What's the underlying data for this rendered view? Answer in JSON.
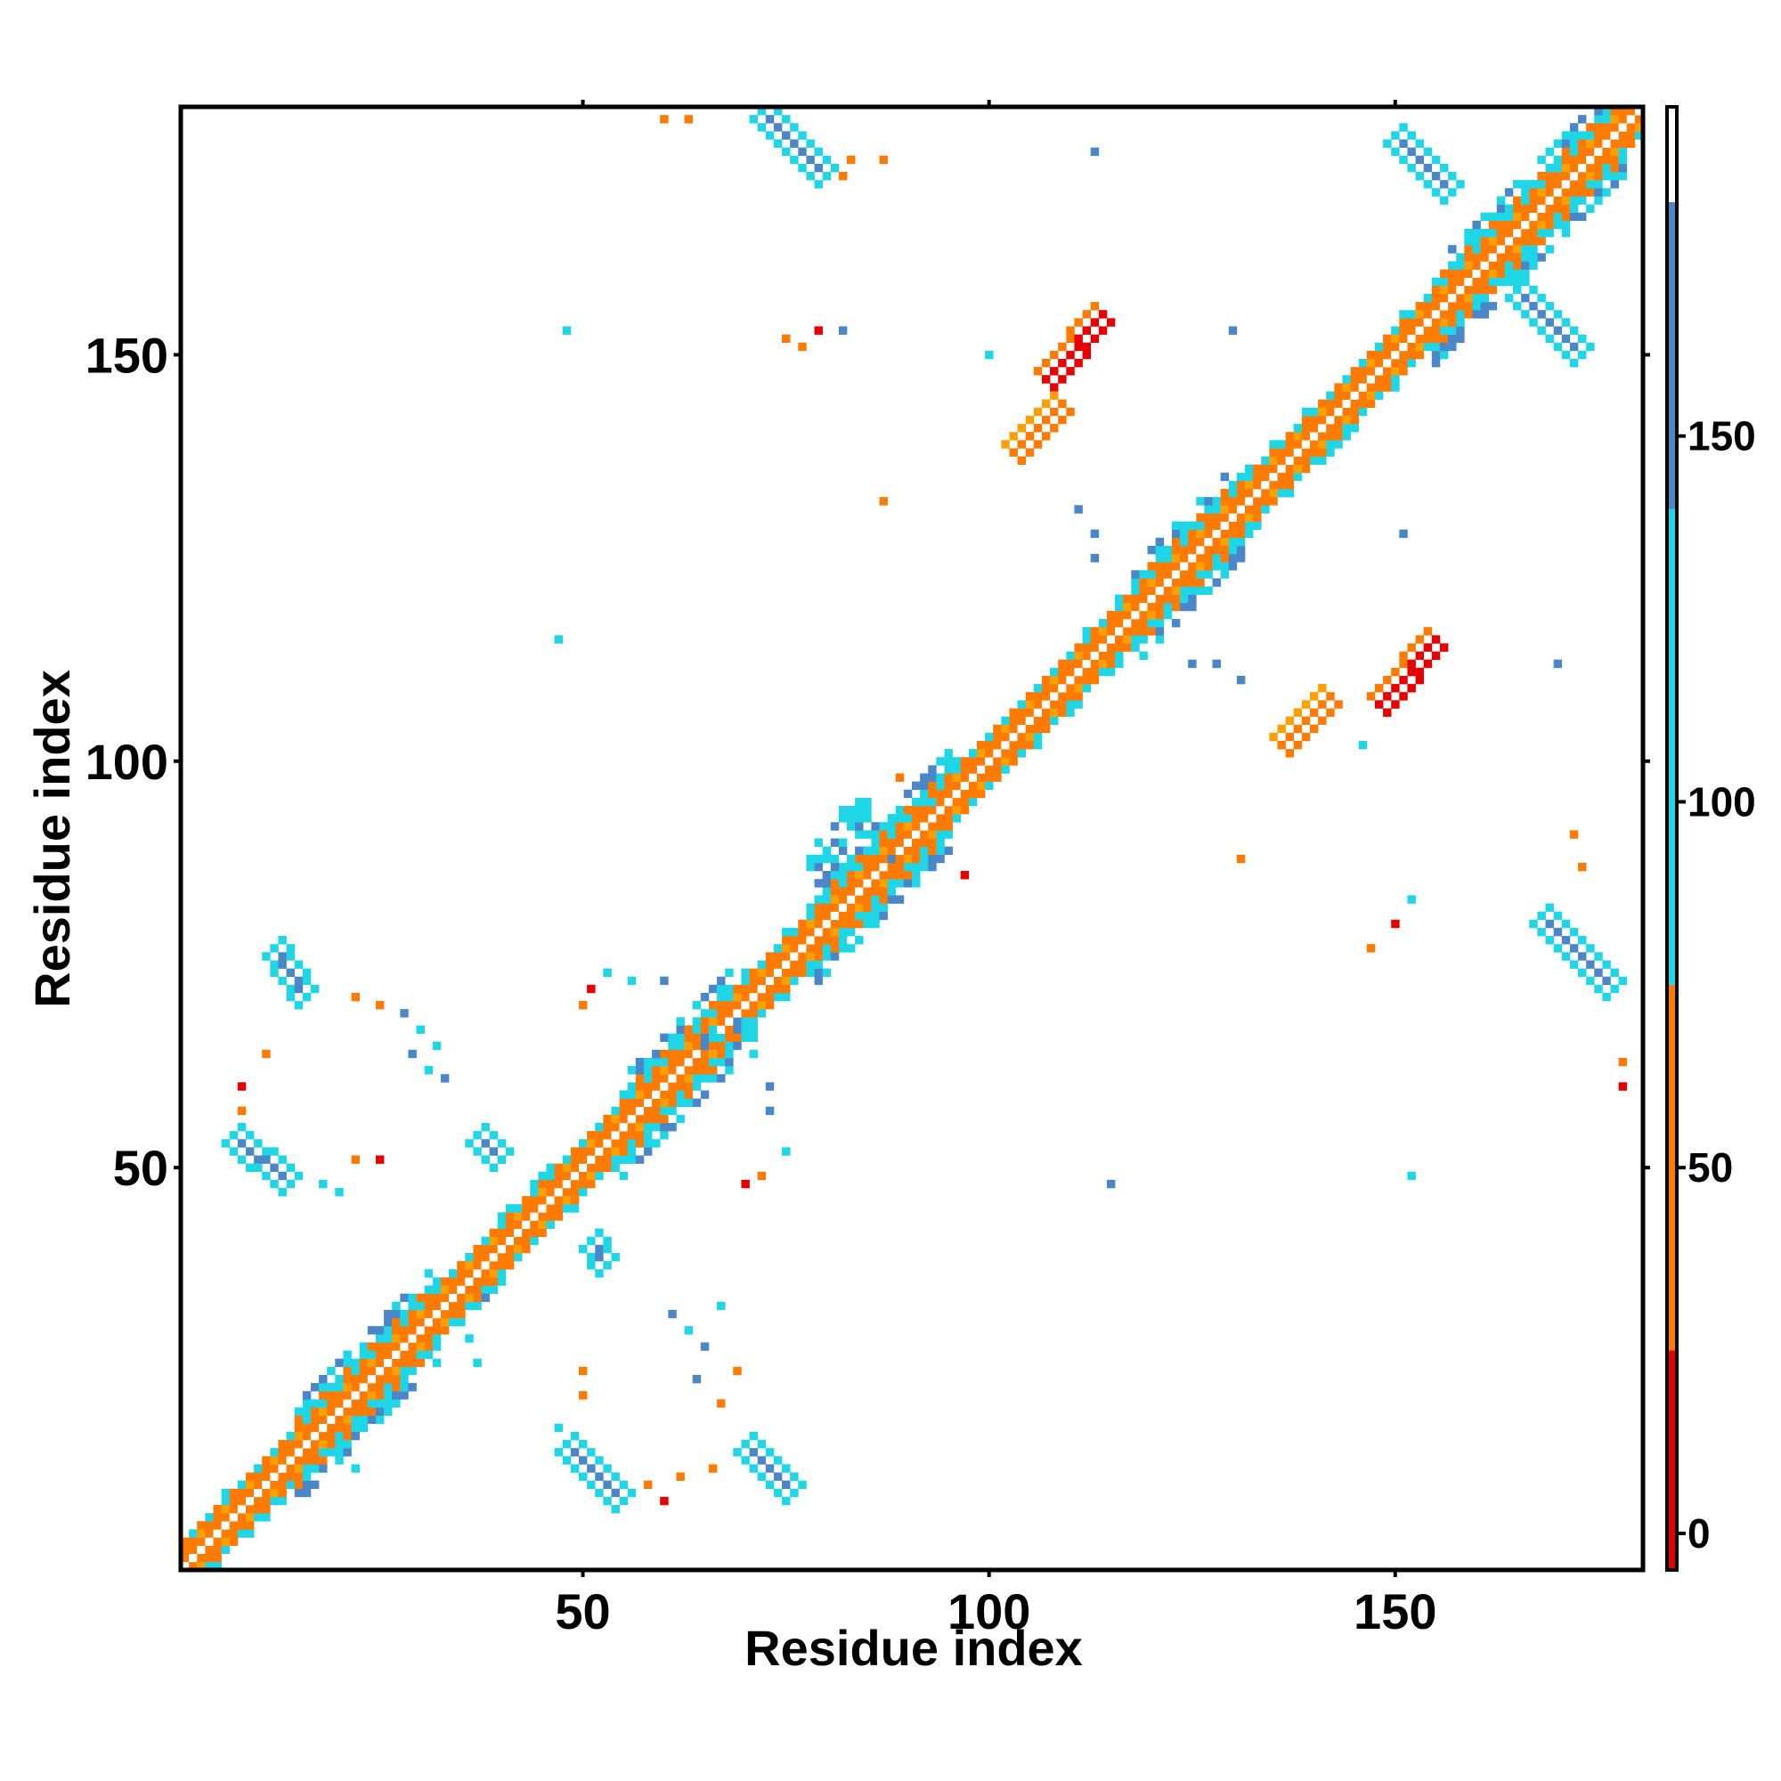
{
  "chart_data": {
    "type": "heatmap",
    "title": "",
    "xlabel": "Residue index",
    "ylabel": "Residue index",
    "xlim": [
      1,
      180
    ],
    "ylim": [
      1,
      180
    ],
    "xticks": [
      50,
      100,
      150
    ],
    "yticks": [
      50,
      100,
      150
    ],
    "legend": "colorbar-right",
    "colorbar": {
      "ticks": [
        0,
        50,
        100,
        150
      ],
      "range": [
        -5,
        195
      ],
      "bands": [
        {
          "from": -5,
          "to": 25,
          "color": "#e60000"
        },
        {
          "from": 25,
          "to": 75,
          "color": "#ff7a00"
        },
        {
          "from": 75,
          "to": 140,
          "color": "#1ed6e6"
        },
        {
          "from": 140,
          "to": 182,
          "color": "#4a86c8"
        },
        {
          "from": 182,
          "to": 195,
          "color": "#ffffff"
        }
      ]
    },
    "palette": {
      "red": "#e60000",
      "orange": "#ff7a00",
      "amber": "#ffa000",
      "cyan": "#1ed6e6",
      "blue": "#4a86c8"
    },
    "diagonal_width": 6,
    "diagonal_dense_segments": [
      [
        15,
        32
      ],
      [
        55,
        68
      ],
      [
        79,
        95
      ],
      [
        118,
        131
      ],
      [
        155,
        178
      ]
    ],
    "regions": [
      {
        "kind": "anti",
        "from": [
          72,
          180
        ],
        "to": [
          80,
          172
        ],
        "color": "blue",
        "edge": "cyan"
      },
      {
        "kind": "anti",
        "from": [
          12,
          77
        ],
        "to": [
          16,
          71
        ],
        "color": "blue",
        "edge": "cyan"
      },
      {
        "kind": "anti",
        "from": [
          7,
          54
        ],
        "to": [
          14,
          48
        ],
        "color": "blue",
        "edge": "cyan"
      },
      {
        "kind": "anti",
        "from": [
          48,
          16
        ],
        "to": [
          55,
          9
        ],
        "color": "blue",
        "edge": "cyan"
      },
      {
        "kind": "anti",
        "from": [
          70,
          16
        ],
        "to": [
          76,
          10
        ],
        "color": "blue",
        "edge": "cyan"
      },
      {
        "kind": "anti",
        "from": [
          150,
          177
        ],
        "to": [
          157,
          170
        ],
        "color": "blue",
        "edge": "cyan"
      },
      {
        "kind": "anti",
        "from": [
          165,
          158
        ],
        "to": [
          173,
          150
        ],
        "color": "blue",
        "edge": "cyan"
      },
      {
        "kind": "anti",
        "from": [
          168,
          81
        ],
        "to": [
          177,
          72
        ],
        "color": "blue",
        "edge": "cyan"
      },
      {
        "kind": "anti",
        "from": [
          37,
          54
        ],
        "to": [
          40,
          51
        ],
        "color": "blue",
        "edge": "cyan"
      },
      {
        "kind": "anti",
        "from": [
          51,
          41
        ],
        "to": [
          53,
          38
        ],
        "color": "blue",
        "edge": "cyan"
      },
      {
        "kind": "parallel",
        "from": [
          107,
          147
        ],
        "to": [
          114,
          155
        ],
        "color": "red",
        "edge": "orange"
      },
      {
        "kind": "parallel",
        "from": [
          148,
          107
        ],
        "to": [
          155,
          115
        ],
        "color": "red",
        "edge": "orange"
      },
      {
        "kind": "parallel",
        "from": [
          136,
          102
        ],
        "to": [
          142,
          108
        ],
        "color": "orange",
        "edge": "amber"
      },
      {
        "kind": "parallel",
        "from": [
          103,
          138
        ],
        "to": [
          109,
          144
        ],
        "color": "orange",
        "edge": "amber"
      },
      {
        "kind": "patch",
        "from": [
          79,
          87
        ],
        "to": [
          84,
          94
        ],
        "color": "cyan",
        "edge": "blue"
      },
      {
        "kind": "patch",
        "from": [
          66,
          65
        ],
        "to": [
          70,
          67
        ],
        "color": "cyan",
        "edge": "blue"
      }
    ],
    "scatter": [
      [
        60,
        179,
        "orange"
      ],
      [
        63,
        179,
        "orange"
      ],
      [
        82,
        172,
        "orange"
      ],
      [
        83,
        174,
        "orange"
      ],
      [
        87,
        174,
        "orange"
      ],
      [
        113,
        175,
        "blue"
      ],
      [
        100,
        150,
        "cyan"
      ],
      [
        75,
        152,
        "orange"
      ],
      [
        77,
        151,
        "orange"
      ],
      [
        79,
        153,
        "red"
      ],
      [
        82,
        153,
        "blue"
      ],
      [
        48,
        153,
        "cyan"
      ],
      [
        130,
        153,
        "blue"
      ],
      [
        87,
        132,
        "orange"
      ],
      [
        111,
        131,
        "blue"
      ],
      [
        113,
        128,
        "blue"
      ],
      [
        113,
        125,
        "blue"
      ],
      [
        151,
        128,
        "blue"
      ],
      [
        47,
        115,
        "cyan"
      ],
      [
        125,
        112,
        "blue"
      ],
      [
        128,
        112,
        "blue"
      ],
      [
        131,
        110,
        "blue"
      ],
      [
        170,
        112,
        "blue"
      ],
      [
        146,
        102,
        "cyan"
      ],
      [
        131,
        88,
        "orange"
      ],
      [
        152,
        83,
        "cyan"
      ],
      [
        150,
        80,
        "red"
      ],
      [
        147,
        77,
        "orange"
      ],
      [
        172,
        91,
        "orange"
      ],
      [
        173,
        87,
        "orange"
      ],
      [
        178,
        63,
        "orange"
      ],
      [
        178,
        60,
        "red"
      ],
      [
        115,
        48,
        "blue"
      ],
      [
        152,
        49,
        "cyan"
      ],
      [
        50,
        70,
        "orange"
      ],
      [
        51,
        72,
        "red"
      ],
      [
        53,
        74,
        "cyan"
      ],
      [
        56,
        73,
        "cyan"
      ],
      [
        60,
        73,
        "blue"
      ],
      [
        22,
        71,
        "orange"
      ],
      [
        25,
        70,
        "orange"
      ],
      [
        28,
        69,
        "blue"
      ],
      [
        30,
        67,
        "cyan"
      ],
      [
        32,
        65,
        "cyan"
      ],
      [
        29,
        64,
        "blue"
      ],
      [
        31,
        62,
        "cyan"
      ],
      [
        33,
        61,
        "blue"
      ],
      [
        11,
        64,
        "orange"
      ],
      [
        8,
        60,
        "red"
      ],
      [
        8,
        57,
        "orange"
      ],
      [
        18,
        48,
        "cyan"
      ],
      [
        20,
        47,
        "cyan"
      ],
      [
        22,
        51,
        "orange"
      ],
      [
        25,
        51,
        "red"
      ],
      [
        71,
        64,
        "cyan"
      ],
      [
        73,
        60,
        "blue"
      ],
      [
        73,
        57,
        "blue"
      ],
      [
        75,
        52,
        "cyan"
      ],
      [
        72,
        49,
        "orange"
      ],
      [
        70,
        48,
        "red"
      ],
      [
        67,
        33,
        "cyan"
      ],
      [
        63,
        30,
        "cyan"
      ],
      [
        65,
        28,
        "blue"
      ],
      [
        69,
        25,
        "orange"
      ],
      [
        61,
        32,
        "blue"
      ],
      [
        64,
        24,
        "blue"
      ],
      [
        50,
        25,
        "orange"
      ],
      [
        50,
        22,
        "orange"
      ],
      [
        67,
        21,
        "orange"
      ],
      [
        47,
        18,
        "cyan"
      ],
      [
        58,
        11,
        "orange"
      ],
      [
        60,
        9,
        "red"
      ],
      [
        62,
        12,
        "orange"
      ],
      [
        66,
        13,
        "orange"
      ],
      [
        83,
        88,
        "cyan"
      ],
      [
        88,
        88,
        "blue"
      ],
      [
        97,
        86,
        "red"
      ],
      [
        93,
        95,
        "cyan"
      ],
      [
        89,
        98,
        "orange"
      ],
      [
        38,
        34,
        "blue"
      ],
      [
        36,
        29,
        "cyan"
      ],
      [
        37,
        26,
        "cyan"
      ],
      [
        20,
        14,
        "cyan"
      ],
      [
        22,
        13,
        "cyan"
      ]
    ]
  }
}
